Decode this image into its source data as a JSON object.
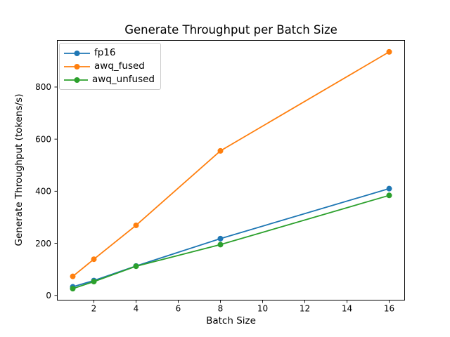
{
  "chart_data": {
    "type": "line",
    "title": "Generate Throughput per Batch Size",
    "xlabel": "Batch Size",
    "ylabel": "Generate Throughput (tokens/s)",
    "x": [
      1,
      2,
      4,
      8,
      16
    ],
    "series": [
      {
        "name": "fp16",
        "color": "#1f77b4",
        "values": [
          33,
          57,
          113,
          218,
          410
        ]
      },
      {
        "name": "awq_fused",
        "color": "#ff7f0e",
        "values": [
          73,
          139,
          269,
          555,
          935
        ]
      },
      {
        "name": "awq_unfused",
        "color": "#2ca02c",
        "values": [
          26,
          53,
          112,
          195,
          384
        ]
      }
    ],
    "xticks": [
      2,
      4,
      6,
      8,
      10,
      12,
      14,
      16
    ],
    "yticks": [
      0,
      200,
      400,
      600,
      800
    ],
    "xlim": [
      0.25,
      16.75
    ],
    "ylim": [
      -19.5,
      980.5
    ],
    "grid": false,
    "marker": "circle",
    "legend_position": "upper-left",
    "background_color": "#ffffff",
    "text_color": "#000000",
    "spine_color": "#000000"
  }
}
